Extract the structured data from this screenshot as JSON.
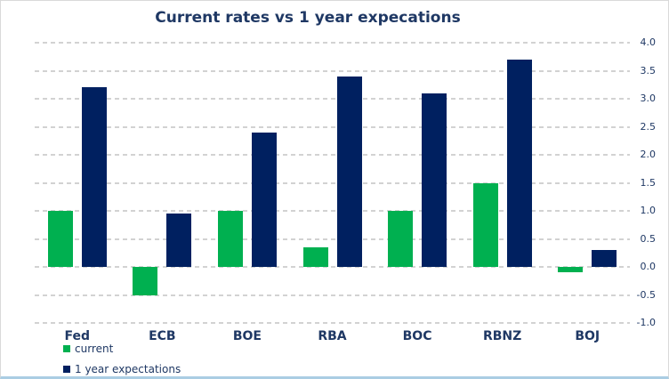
{
  "chart_data": {
    "type": "bar",
    "title": "Current rates vs 1 year expecations",
    "categories": [
      "Fed",
      "ECB",
      "BOE",
      "RBA",
      "BOC",
      "RBNZ",
      "BOJ"
    ],
    "series": [
      {
        "name": "current",
        "color": "#00b050",
        "values": [
          1.0,
          -0.5,
          1.0,
          0.35,
          1.0,
          1.5,
          -0.1
        ]
      },
      {
        "name": "1 year expectations",
        "color": "#002060",
        "values": [
          3.2,
          0.95,
          2.4,
          3.4,
          3.1,
          3.7,
          0.3
        ]
      }
    ],
    "y_axis": {
      "min": -1.0,
      "max": 4.0,
      "step": 0.5,
      "side": "right",
      "tick_labels": [
        "4.0",
        "3.5",
        "3.0",
        "2.5",
        "2.0",
        "1.5",
        "1.0",
        "0.5",
        "0.0",
        "-0.5",
        "-1.0"
      ]
    },
    "xlabel": "",
    "ylabel": "",
    "grid": "horizontal-dashed",
    "legend_position": "bottom-left"
  },
  "colors": {
    "text": "#1f3864",
    "gridline": "#d2d2d2",
    "frame_border": "#d9d9d9",
    "frame_bottom_border": "#aacde3",
    "background": "#ffffff"
  }
}
